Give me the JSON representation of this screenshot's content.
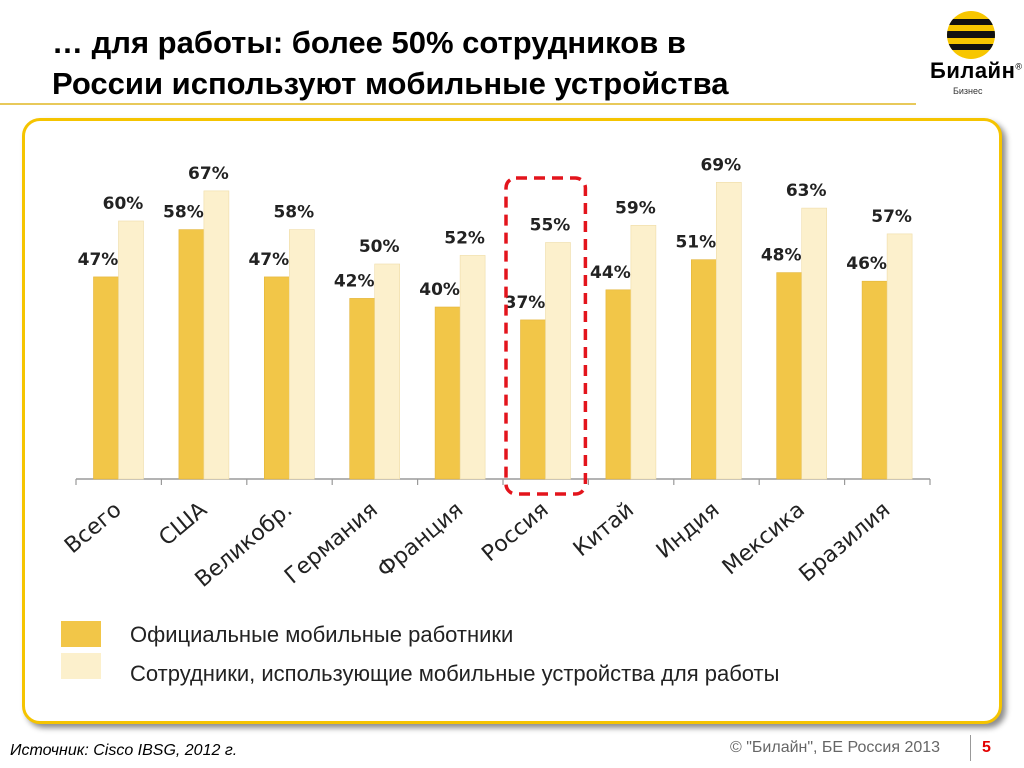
{
  "slide": {
    "title_line1": "… для работы: более 50% сотрудников в",
    "title_line2": "России используют мобильные устройства",
    "source": "Источник: Cisco IBSG, 2012 г.",
    "copyright": "© \"Билайн\", БЕ Россия 2013",
    "page_number": "5"
  },
  "logo": {
    "brand": "Билайн",
    "registered": "®",
    "subtitle": "Бизнес"
  },
  "colors": {
    "series_official": "#f2c648",
    "series_devices": "#fcf0cc",
    "highlight": "#e3141c",
    "panel_border": "#f5c400",
    "accent_rule": "#e8c95a"
  },
  "chart_data": {
    "type": "bar",
    "title": "",
    "xlabel": "",
    "ylabel": "",
    "ylim": [
      0,
      80
    ],
    "grid": false,
    "legend_position": "bottom",
    "categories": [
      "Всего",
      "США",
      "Великобр.",
      "Германия",
      "Франция",
      "Россия",
      "Китай",
      "Индия",
      "Мексика",
      "Бразилия"
    ],
    "highlight_category": "Россия",
    "value_suffix": "%",
    "series": [
      {
        "name": "Официальные мобильные работники",
        "values": [
          47,
          58,
          47,
          42,
          40,
          37,
          44,
          51,
          48,
          46
        ]
      },
      {
        "name": "Сотрудники, использующие мобильные устройства для работы",
        "values": [
          60,
          67,
          58,
          50,
          52,
          55,
          59,
          69,
          63,
          57
        ]
      }
    ]
  }
}
